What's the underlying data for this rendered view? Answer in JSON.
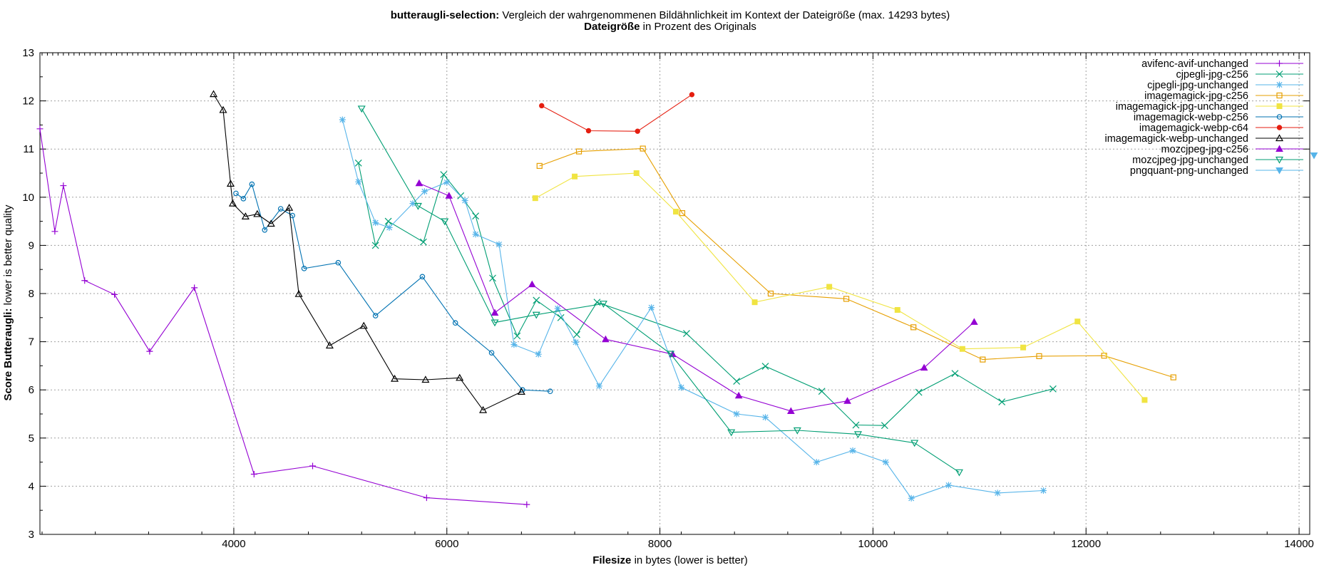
{
  "chart_data": {
    "type": "line",
    "title_bold": "butteraugli-selection:",
    "title_rest": " Vergleich der wahrgenommenen Bildähnlichkeit im Kontext der Dateigröße (max. 14293 bytes)",
    "subtitle_bold": "Dateigröße",
    "subtitle_rest": " in Prozent des Originals",
    "xlabel_bold": "Filesize",
    "xlabel_rest": " in bytes (lower is better)",
    "ylabel_bold": "Score Butteraugli:",
    "ylabel_rest": " lower is better quality",
    "xlim": [
      2180,
      14100
    ],
    "ylim": [
      3,
      13
    ],
    "xticks": [
      4000,
      6000,
      8000,
      10000,
      12000,
      14000
    ],
    "yticks": [
      3,
      4,
      5,
      6,
      7,
      8,
      9,
      10,
      11,
      12,
      13
    ],
    "grid": true,
    "legend_position": "top-right",
    "series": [
      {
        "name": "avifenc-avif-unchanged",
        "color": "#9400d3",
        "marker": "plus",
        "x": [
          2180,
          2320,
          2400,
          2600,
          2880,
          3210,
          3630,
          4190,
          4740,
          5810,
          6750
        ],
        "y": [
          11.42,
          9.29,
          10.24,
          8.27,
          7.98,
          6.8,
          8.12,
          4.25,
          4.42,
          3.76,
          3.62
        ]
      },
      {
        "name": "cjpegli-jpg-c256",
        "color": "#009e73",
        "marker": "x",
        "x": [
          5170,
          5330,
          5450,
          5780,
          5970,
          6130,
          6270,
          6430,
          6660,
          6840,
          7070,
          7220,
          7410,
          8250,
          8720,
          8990,
          9520,
          9840,
          10110,
          10430,
          10770,
          11210,
          11690
        ],
        "y": [
          10.71,
          9.0,
          9.5,
          9.07,
          10.47,
          10.03,
          9.61,
          8.32,
          7.12,
          7.86,
          7.5,
          7.15,
          7.82,
          7.17,
          6.18,
          6.49,
          5.97,
          5.27,
          5.26,
          5.95,
          6.34,
          5.75,
          6.02
        ]
      },
      {
        "name": "cjpegli-jpg-unchanged",
        "color": "#56b4e9",
        "marker": "star",
        "x": [
          5020,
          5170,
          5330,
          5460,
          5680,
          5790,
          6000,
          6170,
          6270,
          6490,
          6630,
          6860,
          7040,
          7210,
          7430,
          7920,
          8200,
          8720,
          8990,
          9470,
          9810,
          10120,
          10360,
          10710,
          11170,
          11600
        ],
        "y": [
          11.61,
          10.32,
          9.47,
          9.37,
          9.87,
          10.12,
          10.31,
          9.93,
          9.23,
          9.02,
          6.94,
          6.74,
          7.69,
          6.99,
          6.08,
          7.71,
          6.05,
          5.5,
          5.43,
          4.5,
          4.74,
          4.5,
          3.75,
          4.02,
          3.86,
          3.91
        ]
      },
      {
        "name": "imagemagick-jpg-c256",
        "color": "#e69f00",
        "marker": "square",
        "x": [
          6870,
          7240,
          7840,
          8210,
          9040,
          9750,
          10380,
          11030,
          11560,
          12170,
          12820
        ],
        "y": [
          10.65,
          10.95,
          11.01,
          9.67,
          8.0,
          7.89,
          7.3,
          6.63,
          6.7,
          6.71,
          6.26
        ]
      },
      {
        "name": "imagemagick-jpg-unchanged",
        "color": "#f0e442",
        "marker": "filledsquare",
        "x": [
          6830,
          7200,
          7780,
          8150,
          8890,
          9590,
          10230,
          10840,
          11410,
          11920,
          12550
        ],
        "y": [
          9.98,
          10.43,
          10.5,
          9.7,
          7.82,
          8.14,
          7.66,
          6.85,
          6.88,
          7.42,
          5.79
        ]
      },
      {
        "name": "imagemagick-webp-c256",
        "color": "#0072b2",
        "marker": "circle",
        "x": [
          4020,
          4090,
          4170,
          4290,
          4440,
          4550,
          4660,
          4980,
          5330,
          5770,
          6080,
          6420,
          6710,
          6970
        ],
        "y": [
          10.08,
          9.97,
          10.27,
          9.32,
          9.76,
          9.62,
          8.52,
          8.64,
          7.54,
          8.35,
          7.39,
          6.77,
          6.0,
          5.97
        ]
      },
      {
        "name": "imagemagick-webp-c64",
        "color": "#e51e10",
        "marker": "filledcircle",
        "x": [
          6890,
          7330,
          7790,
          8300
        ],
        "y": [
          11.9,
          11.38,
          11.37,
          12.13
        ]
      },
      {
        "name": "imagemagick-webp-unchanged",
        "color": "#000000",
        "marker": "triangle",
        "x": [
          3810,
          3900,
          3970,
          3990,
          4110,
          4220,
          4350,
          4520,
          4610,
          4900,
          5220,
          5510,
          5800,
          6120,
          6340,
          6700
        ],
        "y": [
          12.14,
          11.81,
          10.28,
          9.87,
          9.6,
          9.65,
          9.45,
          9.78,
          7.99,
          6.92,
          7.33,
          6.23,
          6.21,
          6.25,
          5.58,
          5.96
        ]
      },
      {
        "name": "mozcjpeg-jpg-c256",
        "color": "#9400d3",
        "marker": "filledtriangle",
        "x": [
          5740,
          6020,
          6450,
          6800,
          7490,
          8120,
          8740,
          9230,
          9760,
          10480,
          10950
        ],
        "y": [
          10.29,
          10.03,
          7.6,
          8.19,
          7.05,
          6.74,
          5.88,
          5.56,
          5.77,
          6.46,
          7.41
        ]
      },
      {
        "name": "mozcjpeg-jpg-unchanged",
        "color": "#009e73",
        "marker": "triangledown",
        "x": [
          5200,
          5730,
          5980,
          6450,
          6840,
          7470,
          8100,
          8670,
          9290,
          9860,
          10390,
          10810
        ],
        "y": [
          11.84,
          9.82,
          9.5,
          7.4,
          7.56,
          7.79,
          6.75,
          5.12,
          5.16,
          5.08,
          4.9,
          4.29
        ]
      },
      {
        "name": "pngquant-png-unchanged",
        "color": "#56b4e9",
        "marker": "filledtriangledown",
        "x": [
          14190
        ],
        "y": [
          10.87
        ]
      }
    ]
  }
}
